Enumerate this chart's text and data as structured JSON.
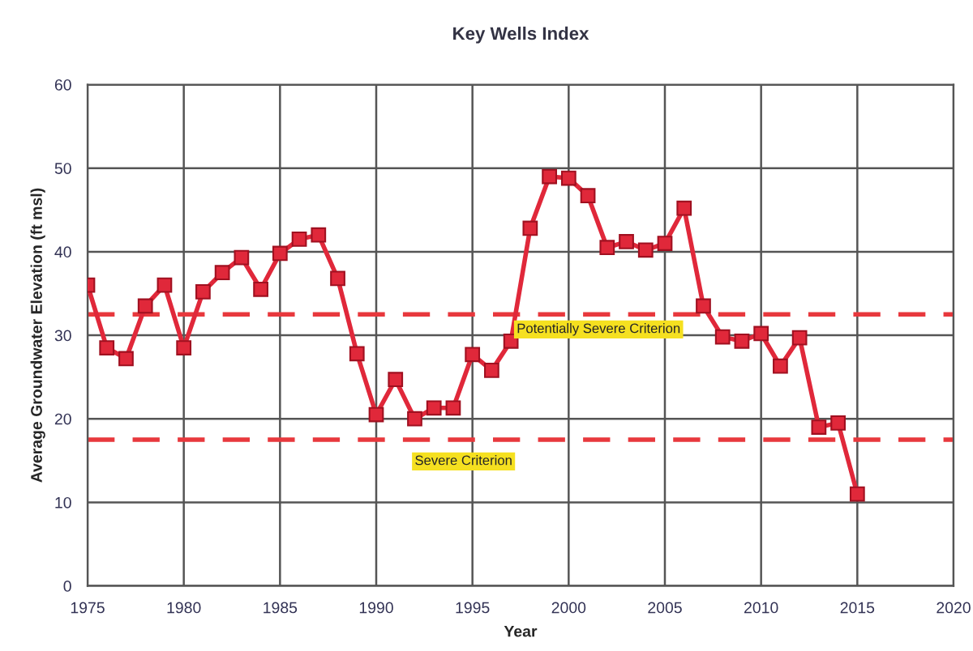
{
  "chart_data": {
    "type": "line",
    "title": "Key Wells Index",
    "xlabel": "Year",
    "ylabel": "Average Groundwater Elevation (ft msl)",
    "x": [
      1975,
      1976,
      1977,
      1978,
      1979,
      1980,
      1981,
      1982,
      1983,
      1984,
      1985,
      1986,
      1987,
      1988,
      1989,
      1990,
      1991,
      1992,
      1993,
      1994,
      1995,
      1996,
      1997,
      1998,
      1999,
      2000,
      2001,
      2002,
      2003,
      2004,
      2005,
      2006,
      2007,
      2008,
      2009,
      2010,
      2011,
      2012,
      2013,
      2014,
      2015
    ],
    "series": [
      {
        "color": "#e0283a",
        "values": [
          36,
          28.5,
          27.2,
          33.5,
          36,
          28.5,
          35.2,
          37.5,
          39.3,
          35.5,
          39.8,
          41.5,
          42,
          36.8,
          27.8,
          20.5,
          24.7,
          20,
          21.3,
          21.3,
          27.7,
          25.8,
          29.3,
          42.8,
          49,
          48.8,
          46.7,
          40.5,
          41.2,
          40.2,
          41,
          45.2,
          33.5,
          29.8,
          29.3,
          30.2,
          26.3,
          29.7,
          19,
          19.5,
          11
        ]
      }
    ],
    "xlim": [
      1975,
      2020
    ],
    "xticks": [
      1975,
      1980,
      1985,
      1990,
      1995,
      2000,
      2005,
      2010,
      2015,
      2020
    ],
    "ylim": [
      0,
      60
    ],
    "yticks": [
      0,
      10,
      20,
      30,
      40,
      50,
      60
    ],
    "grid": true,
    "marker": "square",
    "line_style": "solid",
    "ref_lines": [
      {
        "axis": "y",
        "value": 32.5,
        "label": "Potentially Severe Criterion",
        "color": "#e8383d",
        "line_style": "dashed"
      },
      {
        "axis": "y",
        "value": 17.5,
        "label": "Severe Criterion",
        "color": "#e8383d",
        "line_style": "dashed"
      }
    ]
  }
}
